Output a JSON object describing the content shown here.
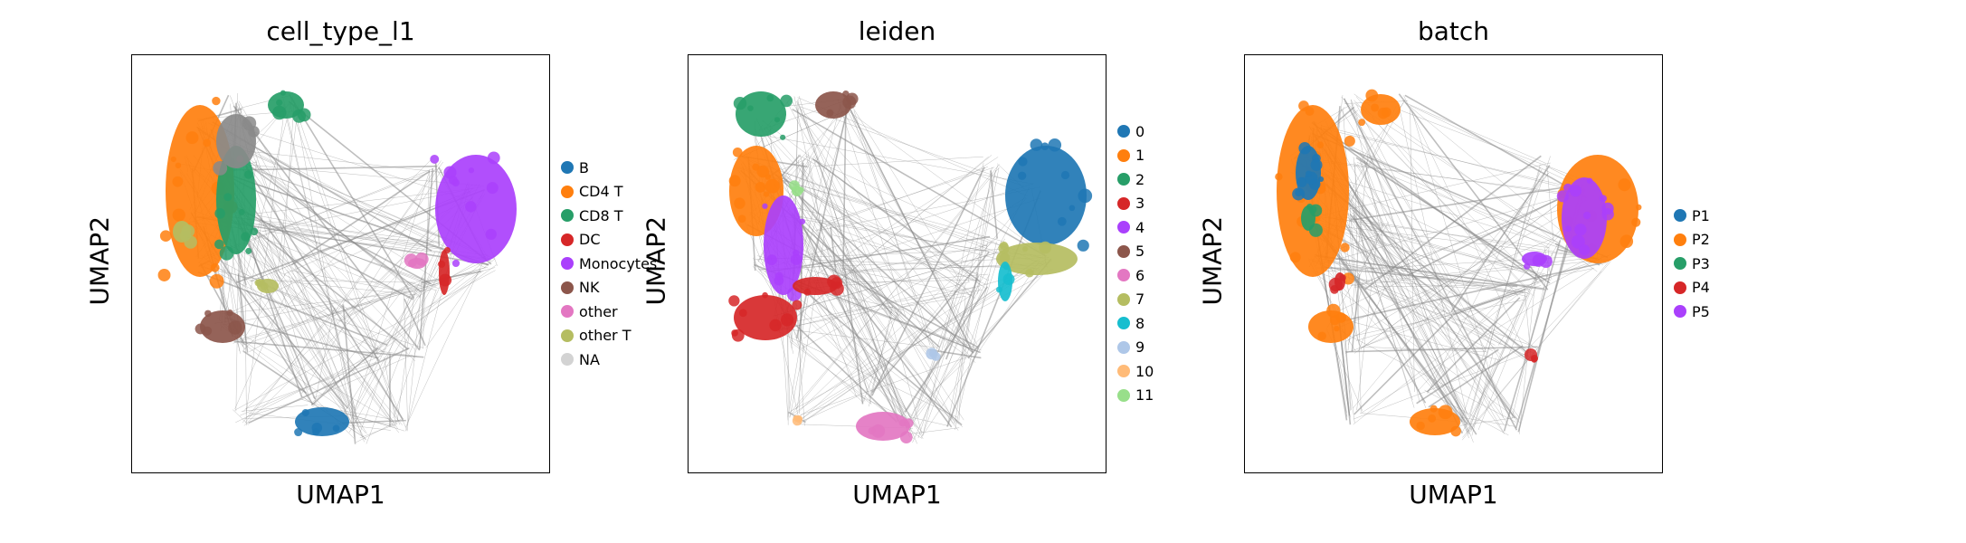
{
  "chart_data": [
    {
      "type": "scatter",
      "title": "cell_type_l1",
      "xlabel": "UMAP1",
      "ylabel": "UMAP2",
      "grid": false,
      "legend_placement": "right",
      "categories": [
        {
          "label": "B",
          "color": "#1f77b4"
        },
        {
          "label": "CD4 T",
          "color": "#ff7f0e"
        },
        {
          "label": "CD8 T",
          "color": "#279e68"
        },
        {
          "label": "DC",
          "color": "#d62728"
        },
        {
          "label": "Monocytes",
          "color": "#aa40fc"
        },
        {
          "label": "NK",
          "color": "#8c564b"
        },
        {
          "label": "other",
          "color": "#e377c2"
        },
        {
          "label": "other T",
          "color": "#b5bd61"
        },
        {
          "label": "NA",
          "color": "#d3d3d3"
        }
      ]
    },
    {
      "type": "scatter",
      "title": "leiden",
      "xlabel": "UMAP1",
      "ylabel": "UMAP2",
      "grid": false,
      "legend_placement": "right",
      "categories": [
        {
          "label": "0",
          "color": "#1f77b4"
        },
        {
          "label": "1",
          "color": "#ff7f0e"
        },
        {
          "label": "2",
          "color": "#279e68"
        },
        {
          "label": "3",
          "color": "#d62728"
        },
        {
          "label": "4",
          "color": "#aa40fc"
        },
        {
          "label": "5",
          "color": "#8c564b"
        },
        {
          "label": "6",
          "color": "#e377c2"
        },
        {
          "label": "7",
          "color": "#b5bd61"
        },
        {
          "label": "8",
          "color": "#17becf"
        },
        {
          "label": "9",
          "color": "#aec7e8"
        },
        {
          "label": "10",
          "color": "#ffbb78"
        },
        {
          "label": "11",
          "color": "#98df8a"
        }
      ]
    },
    {
      "type": "scatter",
      "title": "batch",
      "xlabel": "UMAP1",
      "ylabel": "UMAP2",
      "grid": false,
      "legend_placement": "right",
      "categories": [
        {
          "label": "P1",
          "color": "#1f77b4"
        },
        {
          "label": "P2",
          "color": "#ff7f0e"
        },
        {
          "label": "P3",
          "color": "#279e68"
        },
        {
          "label": "P4",
          "color": "#d62728"
        },
        {
          "label": "P5",
          "color": "#aa40fc"
        }
      ]
    }
  ]
}
